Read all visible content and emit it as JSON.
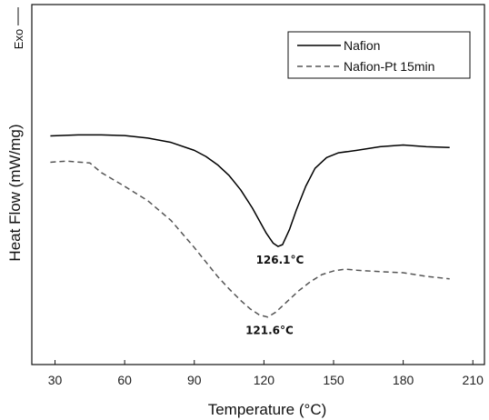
{
  "chart_data": {
    "type": "line",
    "xlabel": "Temperature",
    "xlabel_unit": "(°C)",
    "ylabel": "Heat Flow (mW/mg)",
    "exo_label": "Exo",
    "xlim": [
      20,
      215
    ],
    "ylim": [
      0,
      100
    ],
    "x_ticks": [
      30,
      60,
      90,
      120,
      150,
      180,
      210
    ],
    "y_ticks_shown": false,
    "grid": false,
    "legend_position": "top-right",
    "series": [
      {
        "name": "Nafion",
        "style": "solid",
        "color": "#000000",
        "x": [
          28,
          40,
          50,
          60,
          70,
          80,
          90,
          95,
          100,
          105,
          110,
          115,
          118,
          121,
          124,
          126.1,
          128,
          131,
          134,
          138,
          142,
          147,
          152,
          160,
          170,
          180,
          190,
          200
        ],
        "y": [
          63.5,
          63.8,
          63.8,
          63.6,
          62.9,
          61.7,
          59.5,
          57.8,
          55.5,
          52.5,
          48.5,
          43.5,
          40.0,
          36.5,
          33.7,
          32.8,
          33.3,
          37.5,
          43.0,
          49.5,
          54.5,
          57.5,
          58.8,
          59.5,
          60.5,
          61.0,
          60.5,
          60.3
        ]
      },
      {
        "name": "Nafion-Pt 15min",
        "style": "dashed",
        "color": "#555555",
        "x": [
          28,
          35,
          45,
          50,
          60,
          70,
          80,
          90,
          100,
          105,
          110,
          114,
          118,
          121.6,
          125,
          130,
          135,
          140,
          145,
          150,
          155,
          160,
          170,
          180,
          190,
          200
        ],
        "y": [
          56.2,
          56.5,
          56.0,
          53.3,
          49.5,
          45.5,
          40.0,
          32.5,
          24.5,
          21.0,
          17.8,
          15.5,
          13.8,
          13.2,
          14.5,
          17.5,
          20.5,
          23.0,
          25.0,
          26.0,
          26.5,
          26.2,
          25.8,
          25.5,
          24.5,
          23.8
        ]
      }
    ],
    "annotations": [
      {
        "text": "126.1°C",
        "x": 126.1,
        "y": 32.8
      },
      {
        "text": "121.6°C",
        "x": 121.6,
        "y": 13.2
      }
    ]
  }
}
